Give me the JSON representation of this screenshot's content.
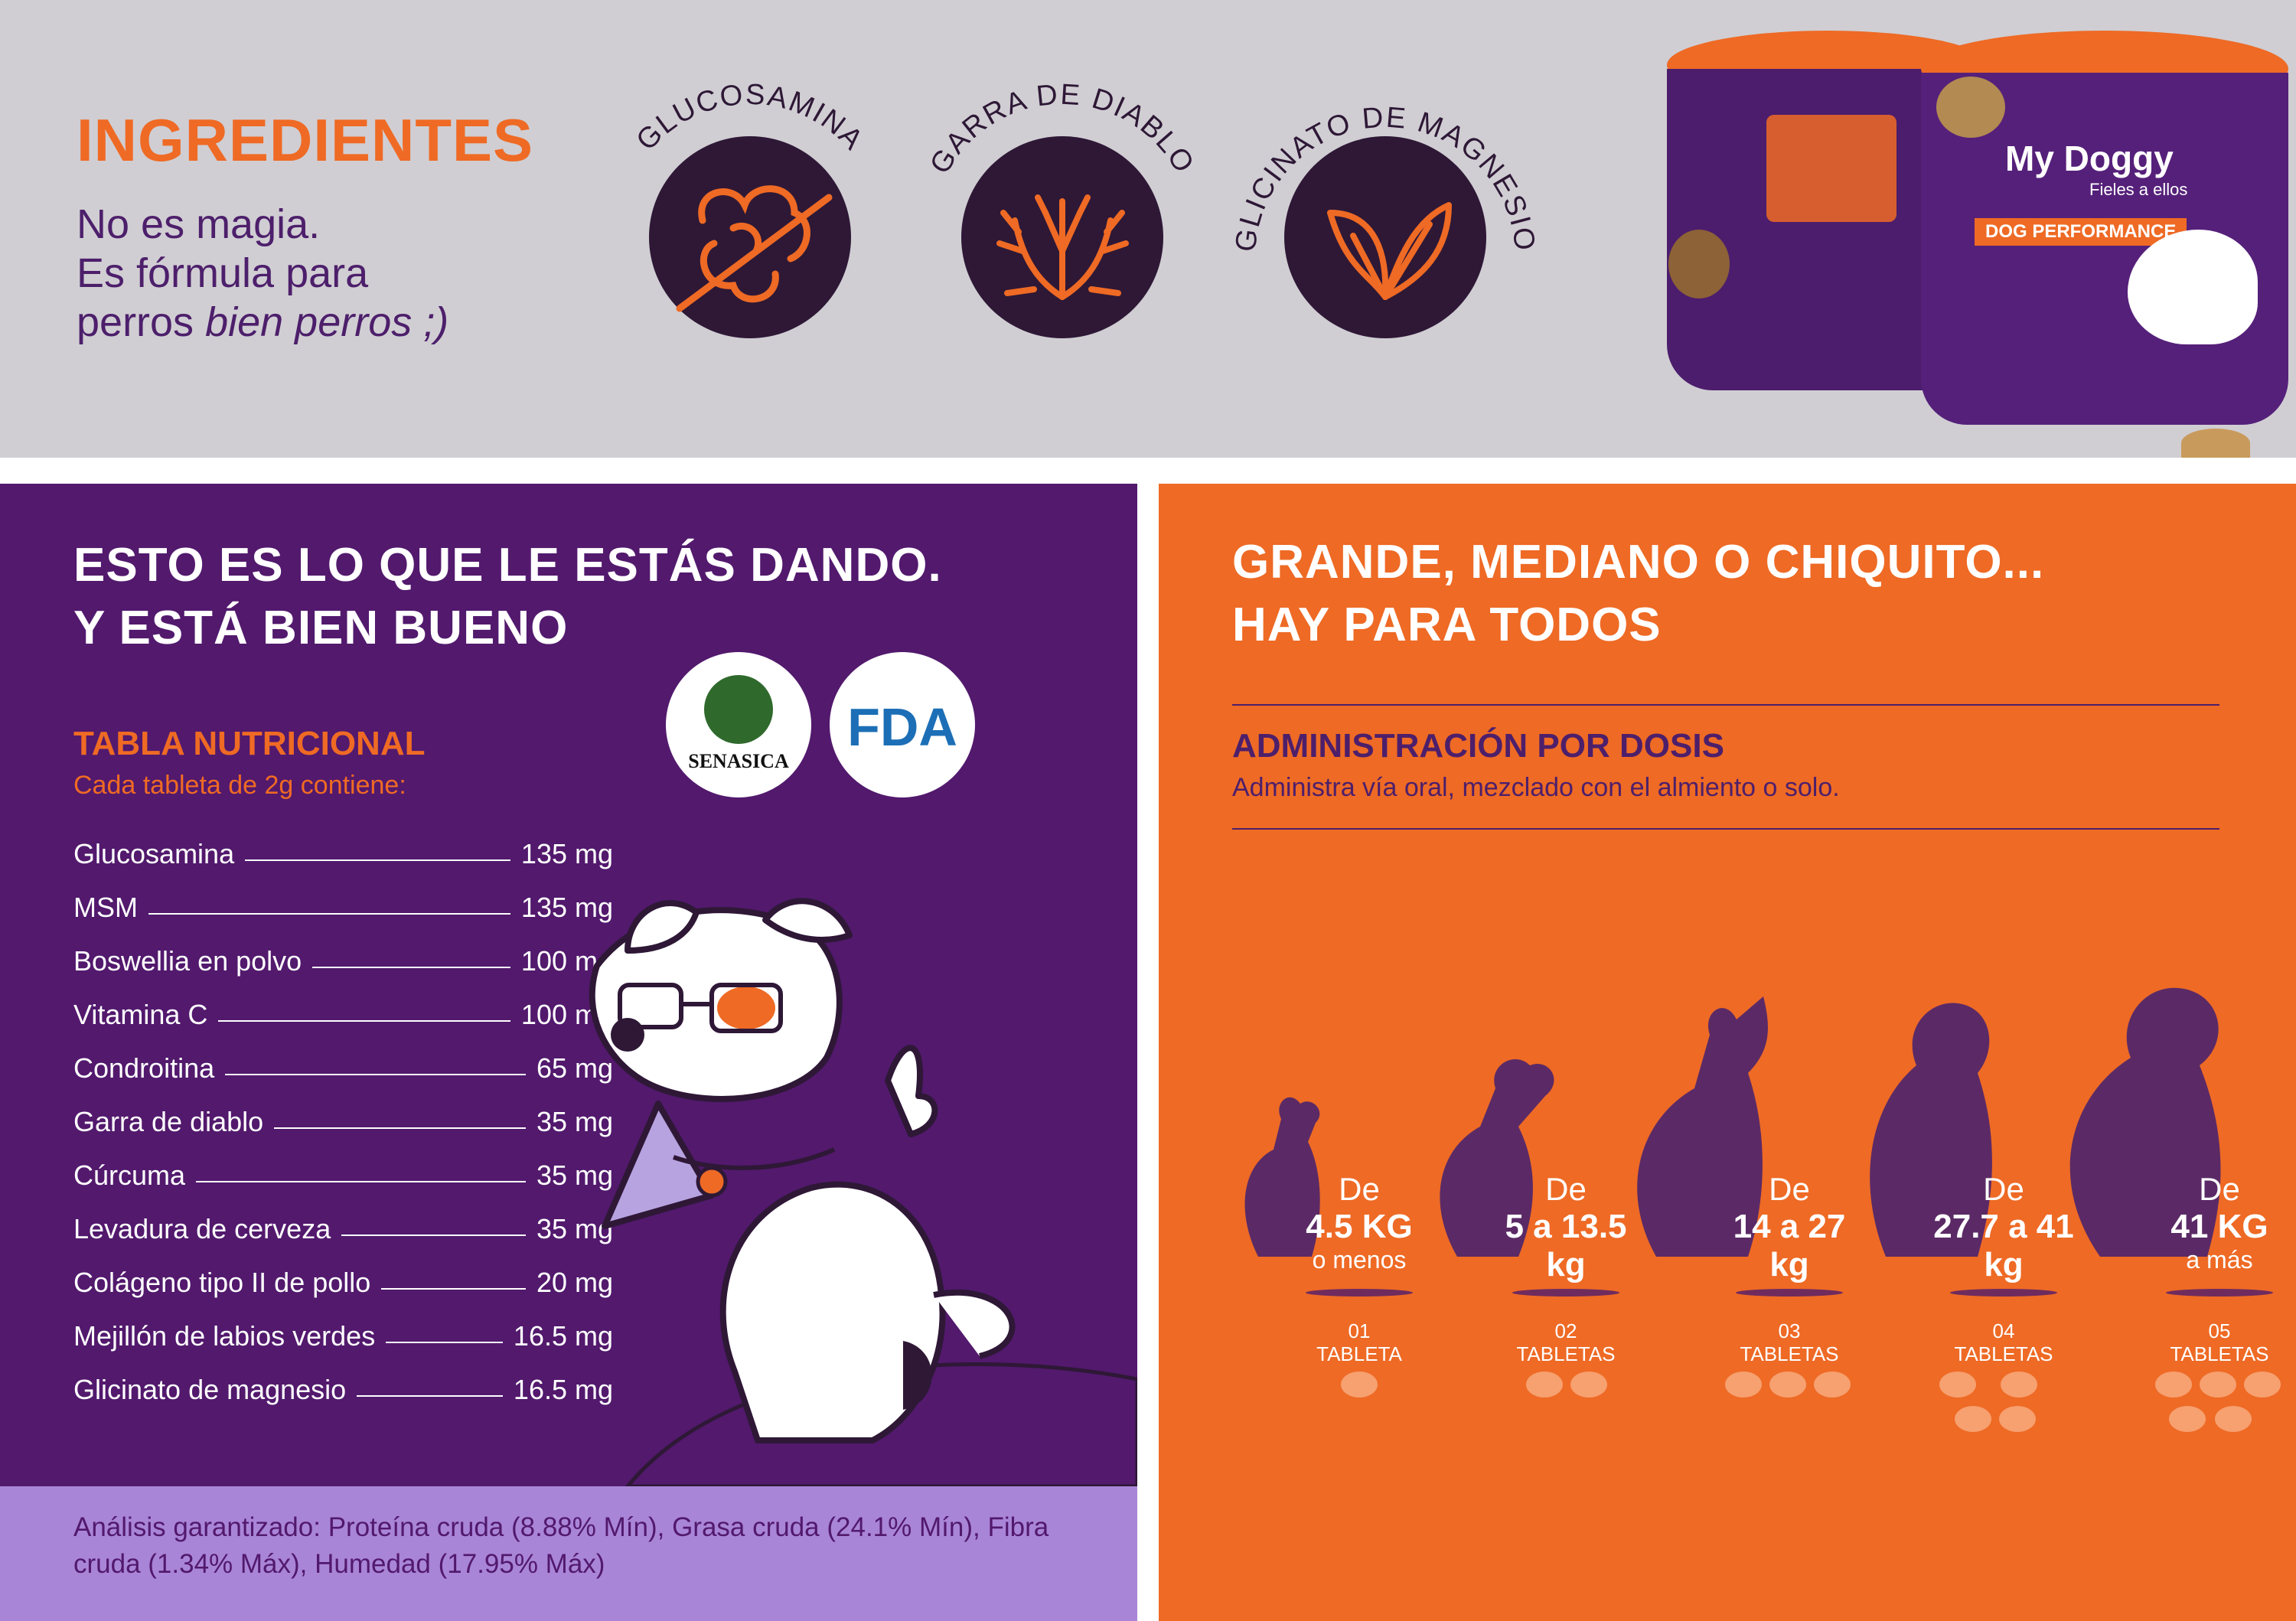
{
  "ingredients": {
    "title": "INGREDIENTES",
    "tagline_line1": "No es magia.",
    "tagline_line2": "Es fórmula para",
    "tagline_line3_prefix": "perros ",
    "tagline_line3_italic": "bien perros ;)",
    "items": [
      {
        "label": "GLUCOSAMINA",
        "icon": "glucosamine-icon"
      },
      {
        "label": "GARRA DE DIABLO",
        "icon": "devils-claw-icon"
      },
      {
        "label": "GLICINATO DE MAGNESIO",
        "icon": "leaf-icon"
      }
    ]
  },
  "product": {
    "brand": "My Doggy",
    "brand_tagline": "Fieles a ellos",
    "line": "DOG PERFORMANCE"
  },
  "nutrition": {
    "heading_line1": "ESTO ES LO QUE LE ESTÁS DANDO.",
    "heading_line2": "Y ESTÁ BIEN BUENO",
    "title": "TABLA NUTRICIONAL",
    "subtitle": "Cada tableta de 2g contiene:",
    "seals": [
      "SENASICA",
      "FDA"
    ],
    "rows": [
      {
        "name": "Glucosamina",
        "amount": "135 mg"
      },
      {
        "name": "MSM",
        "amount": "135 mg"
      },
      {
        "name": "Boswellia en polvo",
        "amount": "100 mg"
      },
      {
        "name": "Vitamina C",
        "amount": "100 mg"
      },
      {
        "name": "Condroitina",
        "amount": "65 mg"
      },
      {
        "name": "Garra de diablo",
        "amount": "35 mg"
      },
      {
        "name": "Cúrcuma",
        "amount": "35 mg"
      },
      {
        "name": "Levadura de cerveza",
        "amount": "35 mg"
      },
      {
        "name": "Colágeno tipo II de pollo",
        "amount": "20 mg"
      },
      {
        "name": "Mejillón de labios verdes",
        "amount": "16.5 mg"
      },
      {
        "name": "Glicinato de magnesio",
        "amount": "16.5 mg"
      }
    ],
    "analysis": "Análisis garantizado: Proteína cruda (8.88% Mín), Grasa cruda (24.1% Mín), Fibra cruda (1.34% Máx), Humedad (17.95% Máx)"
  },
  "dosing": {
    "heading_line1": "GRANDE, MEDIANO O CHIQUITO...",
    "heading_line2": "HAY PARA TODOS",
    "title": "ADMINISTRACIÓN POR DOSIS",
    "subtitle": "Administra vía oral, mezclado con el almiento o solo.",
    "tiers": [
      {
        "de": "De",
        "range": "4.5 KG",
        "extra": "o menos",
        "count": "01",
        "unit": "TABLETA",
        "tablets": 1
      },
      {
        "de": "De",
        "range": "5 a 13.5 kg",
        "extra": "",
        "count": "02",
        "unit": "TABLETAS",
        "tablets": 2
      },
      {
        "de": "De",
        "range": "14 a 27 kg",
        "extra": "",
        "count": "03",
        "unit": "TABLETAS",
        "tablets": 3
      },
      {
        "de": "De",
        "range": "27.7 a 41 kg",
        "extra": "",
        "count": "04",
        "unit": "TABLETAS",
        "tablets": 4
      },
      {
        "de": "De",
        "range": "41 KG",
        "extra": "a más",
        "count": "05",
        "unit": "TABLETAS",
        "tablets": 5
      }
    ]
  },
  "colors": {
    "orange": "#ee6a25",
    "purple": "#52196d",
    "dark_purple": "#2e1836",
    "lavender": "#a985d8",
    "grey": "#d0ced3"
  }
}
